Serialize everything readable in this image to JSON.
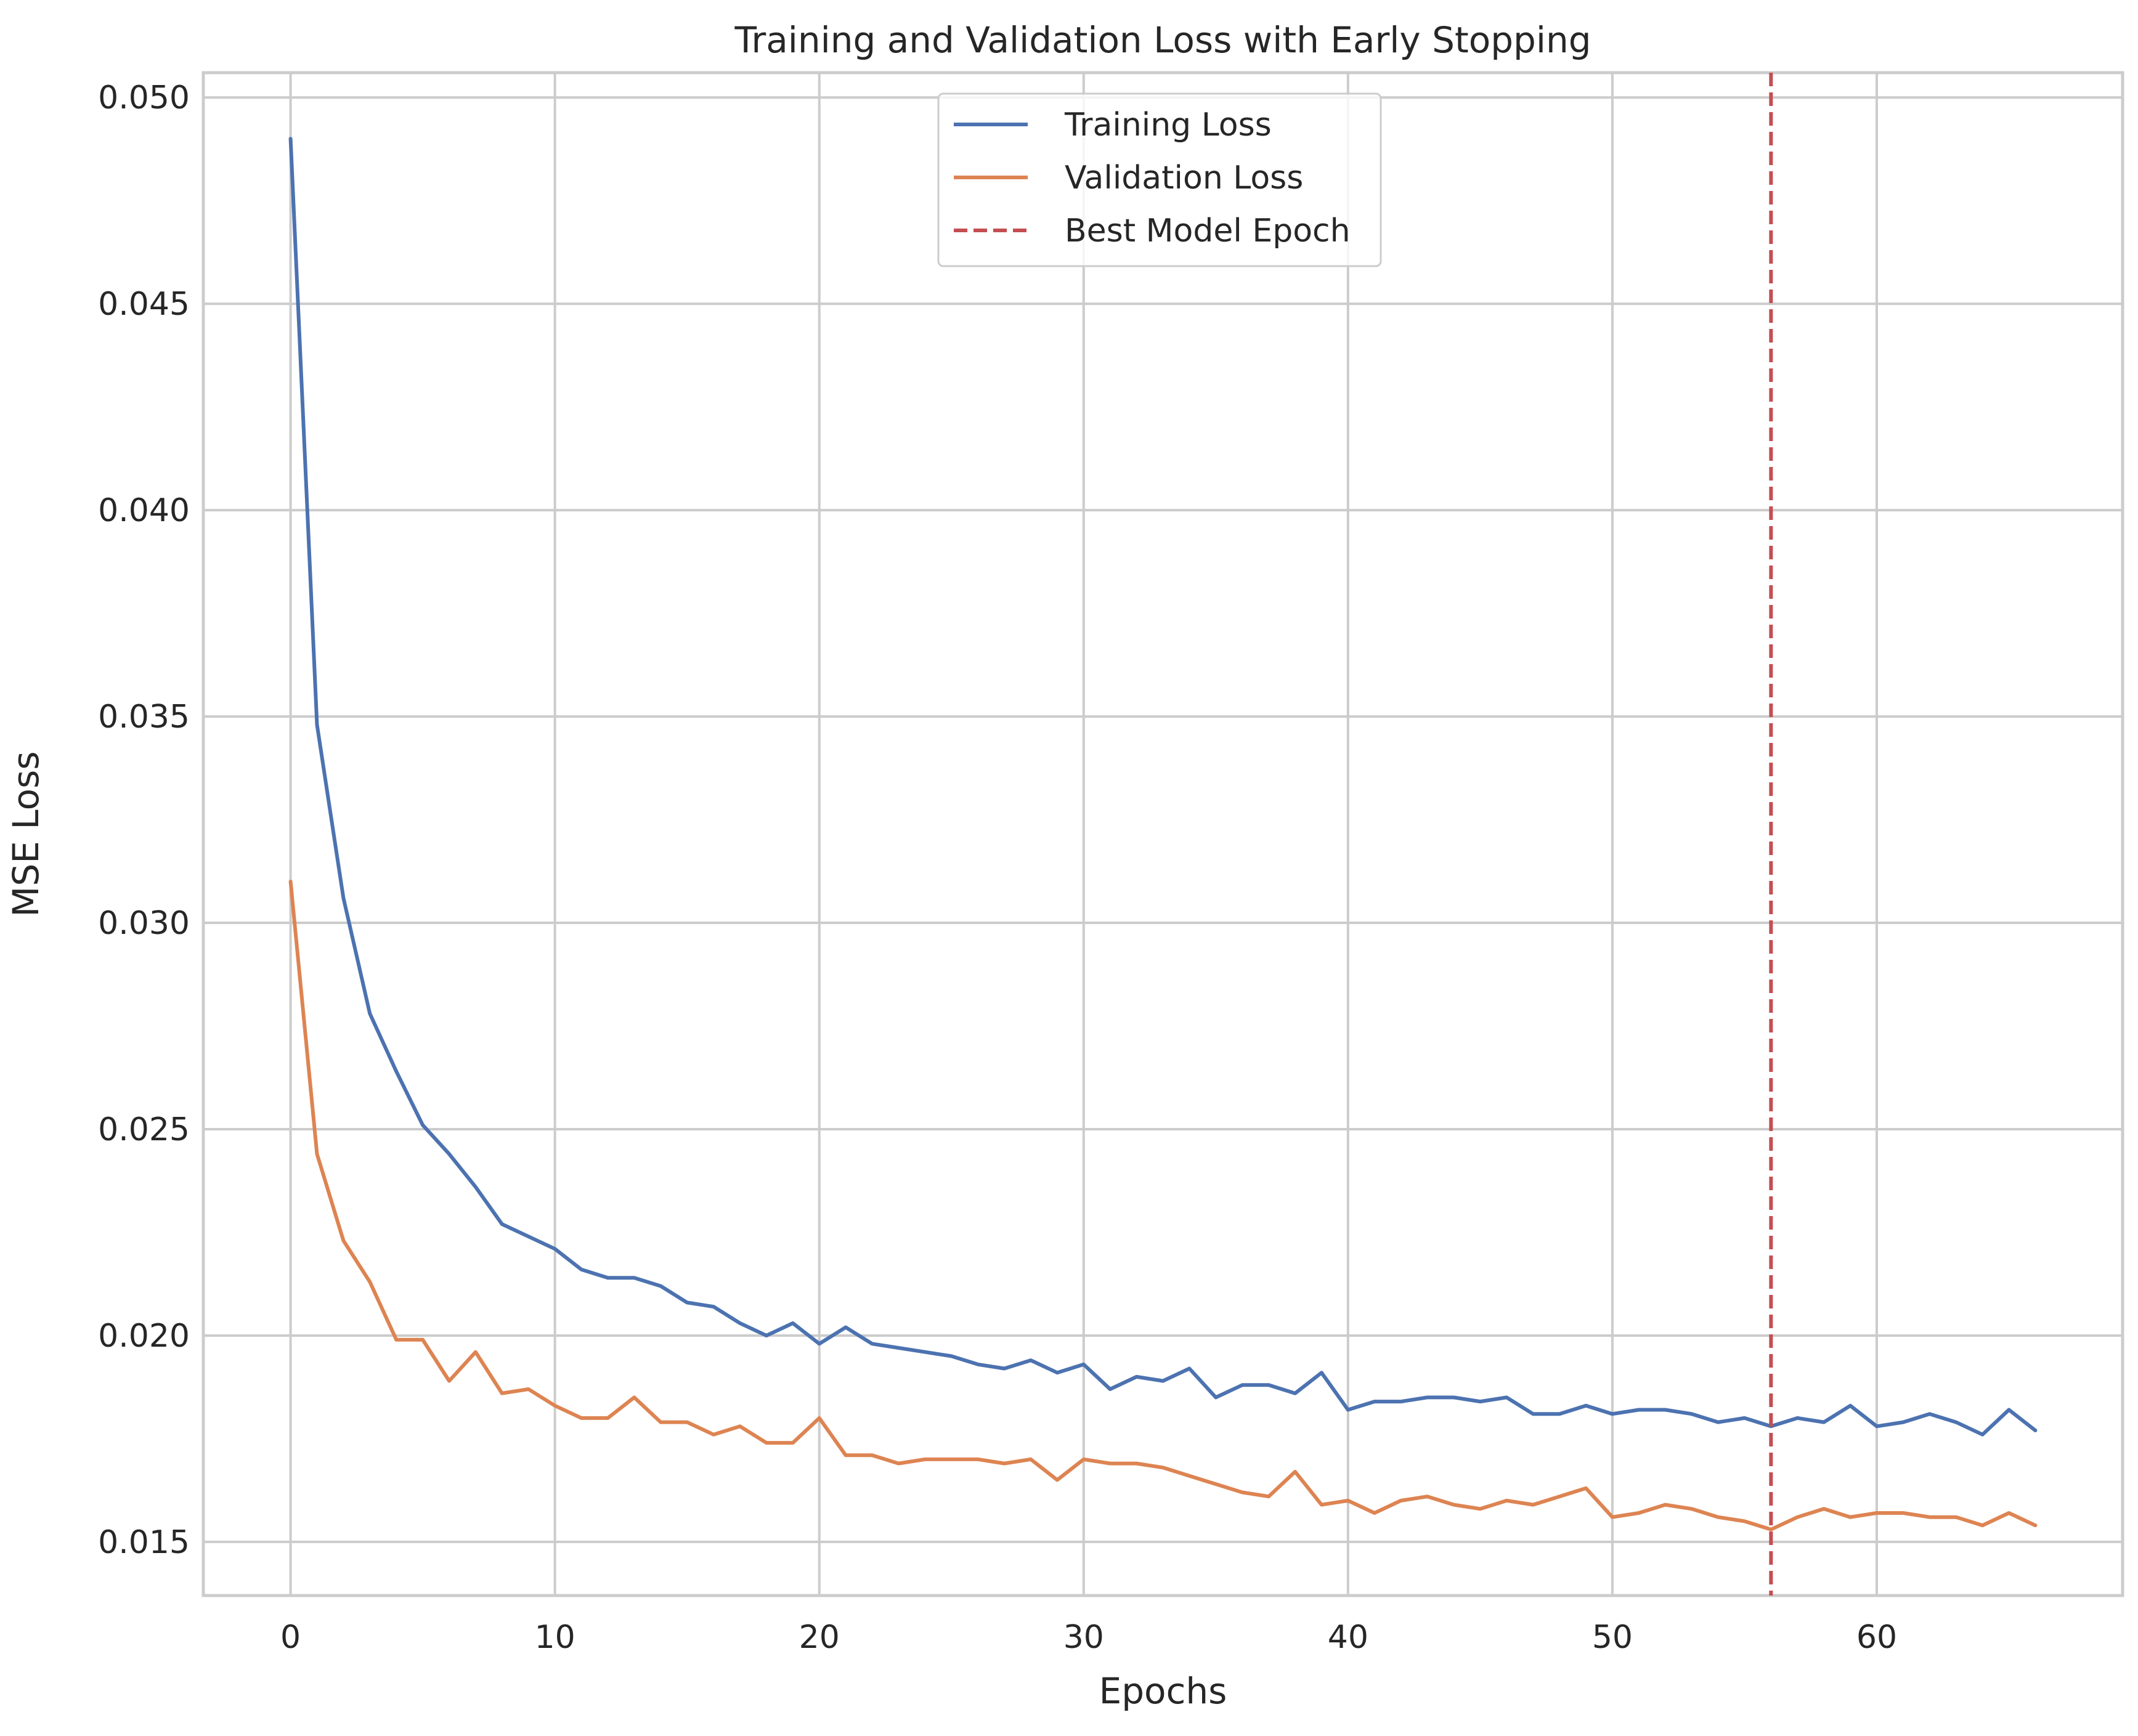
{
  "chart_data": {
    "type": "line",
    "title": "Training and Validation Loss with Early Stopping",
    "xlabel": "Epochs",
    "ylabel": "MSE Loss",
    "xlim": [
      -3.3,
      69.3
    ],
    "ylim": [
      0.0137,
      0.0506
    ],
    "xticks": [
      0,
      10,
      20,
      30,
      40,
      50,
      60
    ],
    "yticks": [
      0.015,
      0.02,
      0.025,
      0.03,
      0.035,
      0.04,
      0.045,
      0.05
    ],
    "ytick_labels": [
      "0.015",
      "0.020",
      "0.025",
      "0.030",
      "0.035",
      "0.040",
      "0.045",
      "0.050"
    ],
    "grid": true,
    "legend_position": "upper center",
    "legend": [
      "Training Loss",
      "Validation Loss",
      "Best Model Epoch"
    ],
    "best_epoch": 56,
    "x": [
      0,
      1,
      2,
      3,
      4,
      5,
      6,
      7,
      8,
      9,
      10,
      11,
      12,
      13,
      14,
      15,
      16,
      17,
      18,
      19,
      20,
      21,
      22,
      23,
      24,
      25,
      26,
      27,
      28,
      29,
      30,
      31,
      32,
      33,
      34,
      35,
      36,
      37,
      38,
      39,
      40,
      41,
      42,
      43,
      44,
      45,
      46,
      47,
      48,
      49,
      50,
      51,
      52,
      53,
      54,
      55,
      56,
      57,
      58,
      59,
      60,
      61,
      62,
      63,
      64,
      65,
      66
    ],
    "series": [
      {
        "name": "Training Loss",
        "color": "#4c72b0",
        "values": [
          0.049,
          0.0348,
          0.0306,
          0.0278,
          0.0264,
          0.0251,
          0.0244,
          0.0236,
          0.0227,
          0.0224,
          0.0221,
          0.0216,
          0.0214,
          0.0214,
          0.0212,
          0.0208,
          0.0207,
          0.0203,
          0.02,
          0.0203,
          0.0198,
          0.0202,
          0.0198,
          0.0197,
          0.0196,
          0.0195,
          0.0193,
          0.0192,
          0.0194,
          0.0191,
          0.0193,
          0.0187,
          0.019,
          0.0189,
          0.0192,
          0.0185,
          0.0188,
          0.0188,
          0.0186,
          0.0191,
          0.0182,
          0.0184,
          0.0184,
          0.0185,
          0.0185,
          0.0184,
          0.0185,
          0.0181,
          0.0181,
          0.0183,
          0.0181,
          0.0182,
          0.0182,
          0.0181,
          0.0179,
          0.018,
          0.0178,
          0.018,
          0.0179,
          0.0183,
          0.0178,
          0.0179,
          0.0181,
          0.0179,
          0.0176,
          0.0182,
          0.0177
        ]
      },
      {
        "name": "Validation Loss",
        "color": "#dd8452",
        "values": [
          0.031,
          0.0244,
          0.0223,
          0.0213,
          0.0199,
          0.0199,
          0.0189,
          0.0196,
          0.0186,
          0.0187,
          0.0183,
          0.018,
          0.018,
          0.0185,
          0.0179,
          0.0179,
          0.0176,
          0.0178,
          0.0174,
          0.0174,
          0.018,
          0.0171,
          0.0171,
          0.0169,
          0.017,
          0.017,
          0.017,
          0.0169,
          0.017,
          0.0165,
          0.017,
          0.0169,
          0.0169,
          0.0168,
          0.0166,
          0.0164,
          0.0162,
          0.0161,
          0.0167,
          0.0159,
          0.016,
          0.0157,
          0.016,
          0.0161,
          0.0159,
          0.0158,
          0.016,
          0.0159,
          0.0161,
          0.0163,
          0.0156,
          0.0157,
          0.0159,
          0.0158,
          0.0156,
          0.0155,
          0.0153,
          0.0156,
          0.0158,
          0.0156,
          0.0157,
          0.0157,
          0.0156,
          0.0156,
          0.0154,
          0.0157,
          0.0154
        ]
      }
    ],
    "vline": {
      "name": "Best Model Epoch",
      "x": 56,
      "color": "#c44e52",
      "style": "dashed"
    }
  }
}
